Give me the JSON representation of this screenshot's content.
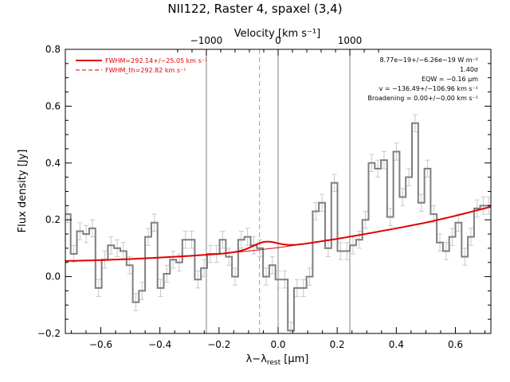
{
  "chart_data": {
    "type": "line",
    "title": "NII122, Raster 4, spaxel (3,4)",
    "xlabel": "λ−λ_rest [μm]",
    "xlabel_main": "λ−λ",
    "xlabel_sub": "rest",
    "xlabel_unit": " [μm]",
    "ylabel": "Flux density [Jy]",
    "top_axis_label": "Velocity [km s⁻¹]",
    "xlim": [
      -0.72,
      0.72
    ],
    "ylim": [
      -0.2,
      0.8
    ],
    "x_ticks": [
      -0.6,
      -0.4,
      -0.2,
      0.0,
      0.2,
      0.4,
      0.6
    ],
    "x_tick_labels": [
      "−0.6",
      "−0.4",
      "−0.2",
      "0.0",
      "0.2",
      "0.4",
      "0.6"
    ],
    "y_ticks": [
      -0.2,
      0.0,
      0.2,
      0.4,
      0.6,
      0.8
    ],
    "y_tick_labels": [
      "−0.2",
      "0.0",
      "0.2",
      "0.4",
      "0.6",
      "0.8"
    ],
    "top_ticks_wavelength": [
      -0.2428,
      0.0,
      0.2428
    ],
    "top_tick_labels": [
      "−1000",
      "0",
      "1000"
    ],
    "vertical_lines_solid": [
      -0.2428,
      0.0,
      0.2428
    ],
    "vertical_line_dashed": -0.063,
    "legend": [
      {
        "label": "FWHM=292.14+/−25.05 km s⁻¹",
        "style": "solid",
        "color": "#e00000"
      },
      {
        "label": "FWHM_th=292.82 km s⁻¹",
        "style": "dashed",
        "color": "#e00000"
      }
    ],
    "annotations": [
      "8.77e−19+/−6.26e−19 W m⁻²",
      "1.40σ",
      "EQW = −0.16 μm",
      "v = −136.49+/−106.96 km s⁻¹",
      "Broadening = 0.00+/−0.00 km s⁻¹"
    ],
    "spectrum": {
      "x": [
        -0.7125,
        -0.6915,
        -0.6705,
        -0.6495,
        -0.6285,
        -0.6075,
        -0.5865,
        -0.5655,
        -0.5445,
        -0.5235,
        -0.5025,
        -0.4815,
        -0.4605,
        -0.4395,
        -0.4185,
        -0.3975,
        -0.3765,
        -0.3555,
        -0.3345,
        -0.3135,
        -0.2925,
        -0.2715,
        -0.2505,
        -0.2295,
        -0.2085,
        -0.1875,
        -0.1665,
        -0.1455,
        -0.1245,
        -0.1035,
        -0.0825,
        -0.0615,
        -0.0405,
        -0.0195,
        0.0015,
        0.0225,
        0.0435,
        0.0645,
        0.0855,
        0.1065,
        0.1275,
        0.1485,
        0.1695,
        0.1905,
        0.2115,
        0.2325,
        0.2535,
        0.2745,
        0.2955,
        0.3165,
        0.3375,
        0.3585,
        0.3795,
        0.4005,
        0.4215,
        0.4425,
        0.4635,
        0.4845,
        0.5055,
        0.5265,
        0.5475,
        0.5685,
        0.5895,
        0.6105,
        0.6315,
        0.6525,
        0.6735,
        0.6945,
        0.7125
      ],
      "y": [
        0.22,
        0.08,
        0.16,
        0.15,
        0.17,
        -0.04,
        0.06,
        0.11,
        0.1,
        0.09,
        0.04,
        -0.09,
        -0.05,
        0.14,
        0.19,
        -0.04,
        0.01,
        0.06,
        0.05,
        0.13,
        0.13,
        -0.01,
        0.03,
        0.08,
        0.08,
        0.13,
        0.07,
        0.0,
        0.13,
        0.14,
        0.11,
        0.1,
        0.0,
        0.04,
        -0.01,
        -0.01,
        -0.19,
        -0.04,
        -0.04,
        0.0,
        0.23,
        0.26,
        0.1,
        0.33,
        0.09,
        0.09,
        0.11,
        0.13,
        0.2,
        0.4,
        0.38,
        0.41,
        0.21,
        0.44,
        0.28,
        0.35,
        0.54,
        0.26,
        0.38,
        0.22,
        0.12,
        0.09,
        0.14,
        0.19,
        0.07,
        0.14,
        0.24,
        0.25,
        0.25
      ],
      "err": 0.03
    },
    "fit_continuum": {
      "x": [
        -0.72,
        -0.6,
        -0.5,
        -0.4,
        -0.3,
        -0.2,
        -0.1,
        0.0,
        0.1,
        0.2,
        0.3,
        0.4,
        0.5,
        0.6,
        0.72
      ],
      "y": [
        0.055,
        0.058,
        0.062,
        0.067,
        0.073,
        0.08,
        0.09,
        0.102,
        0.117,
        0.133,
        0.151,
        0.17,
        0.19,
        0.214,
        0.246
      ]
    },
    "fit_line": {
      "center": -0.0435,
      "amplitude": 0.026,
      "sigma": 0.042
    }
  }
}
